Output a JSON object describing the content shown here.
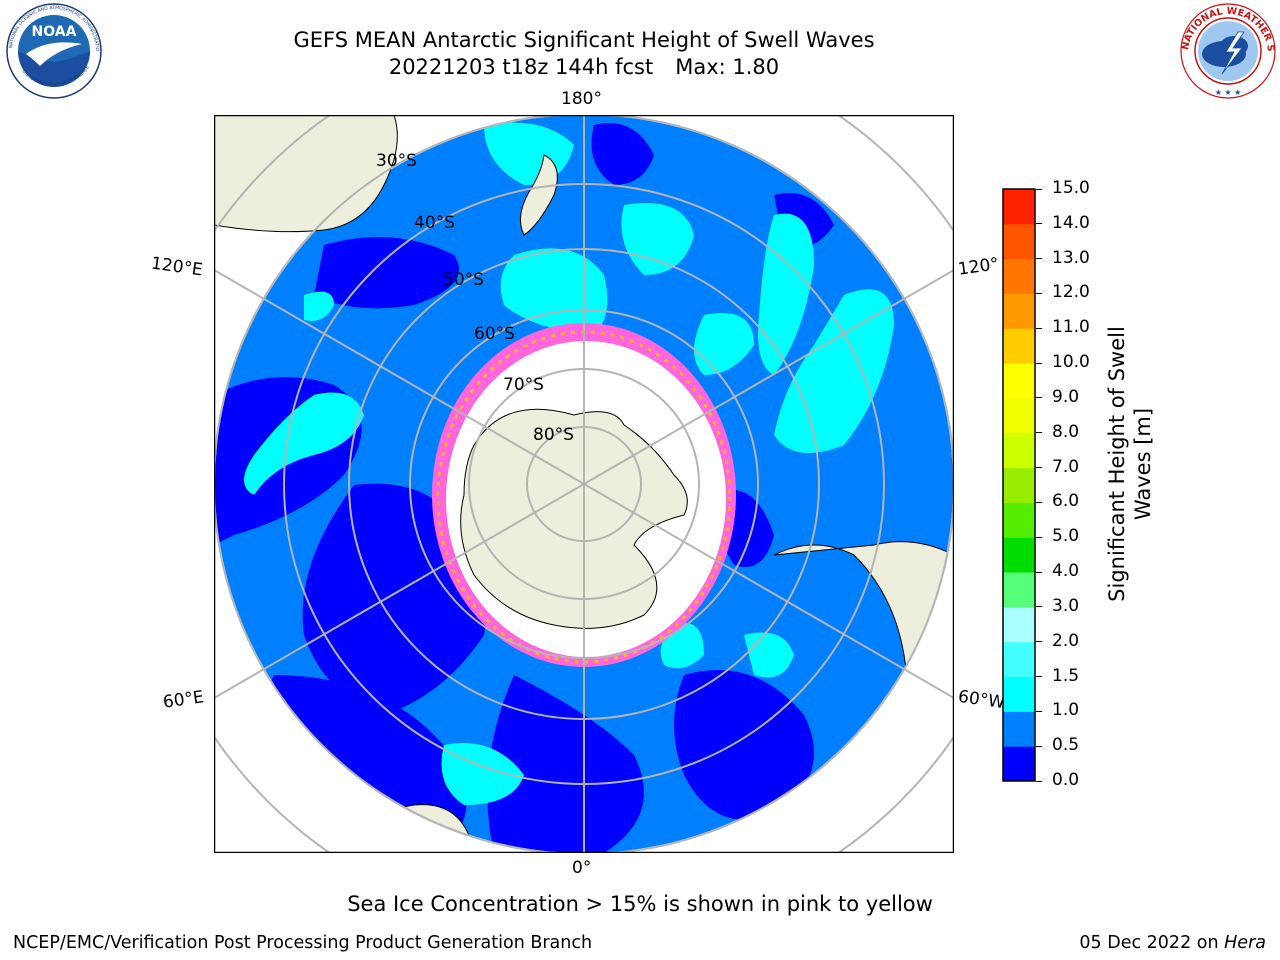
{
  "title": {
    "line1": "GEFS MEAN Antarctic Significant Height of Swell Waves",
    "line2_date": "20221203 t18z 144h fcst",
    "line2_max": "Max: 1.80"
  },
  "logos": {
    "left": {
      "name": "NOAA",
      "text": "NOAA",
      "ring_text": "NATIONAL OCEANIC AND ATMOSPHERIC ADMINISTRATION · U.S. DEPARTMENT OF COMMERCE"
    },
    "right": {
      "name": "National Weather Service",
      "ring_text": "NATIONAL WEATHER SERVICE"
    }
  },
  "map": {
    "projection": "south-polar-stereographic",
    "longitude_labels": {
      "top": "180°",
      "bottom": "0°",
      "left_upper": "120°E",
      "left_lower": "60°E",
      "right_upper": "120°",
      "right_lower": "60°W"
    },
    "latitude_labels": [
      "30°S",
      "40°S",
      "50°S",
      "60°S",
      "70°S",
      "80°S"
    ],
    "colors": {
      "land": "#eeeedc",
      "sea_ice": "#ffffff",
      "ice_edge_pink": "#ff66dd",
      "ice_edge_orange": "#ffb030",
      "grid": "#b4b4b4"
    }
  },
  "colorbar": {
    "label_line1": "Significant Height of Swell",
    "label_line2": "Waves [m]",
    "ticks": [
      "0.0",
      "0.5",
      "1.0",
      "1.5",
      "2.0",
      "3.0",
      "4.0",
      "5.0",
      "6.0",
      "7.0",
      "8.0",
      "9.0",
      "10.0",
      "11.0",
      "12.0",
      "13.0",
      "14.0",
      "15.0"
    ],
    "colors": [
      "#0000ff",
      "#0080ff",
      "#00ffff",
      "#44ffff",
      "#aaffff",
      "#55ff77",
      "#00dd00",
      "#55ee00",
      "#99ee00",
      "#ccff00",
      "#eeff00",
      "#ffff00",
      "#ffcc00",
      "#ff9900",
      "#ff7700",
      "#ff5500",
      "#ff2200"
    ]
  },
  "caption": "Sea Ice Concentration > 15% is shown in pink to yellow",
  "footer": {
    "left": "NCEP/EMC/Verification Post Processing Product Generation Branch",
    "right_date": "05 Dec 2022 on",
    "right_machine": "Hera"
  }
}
